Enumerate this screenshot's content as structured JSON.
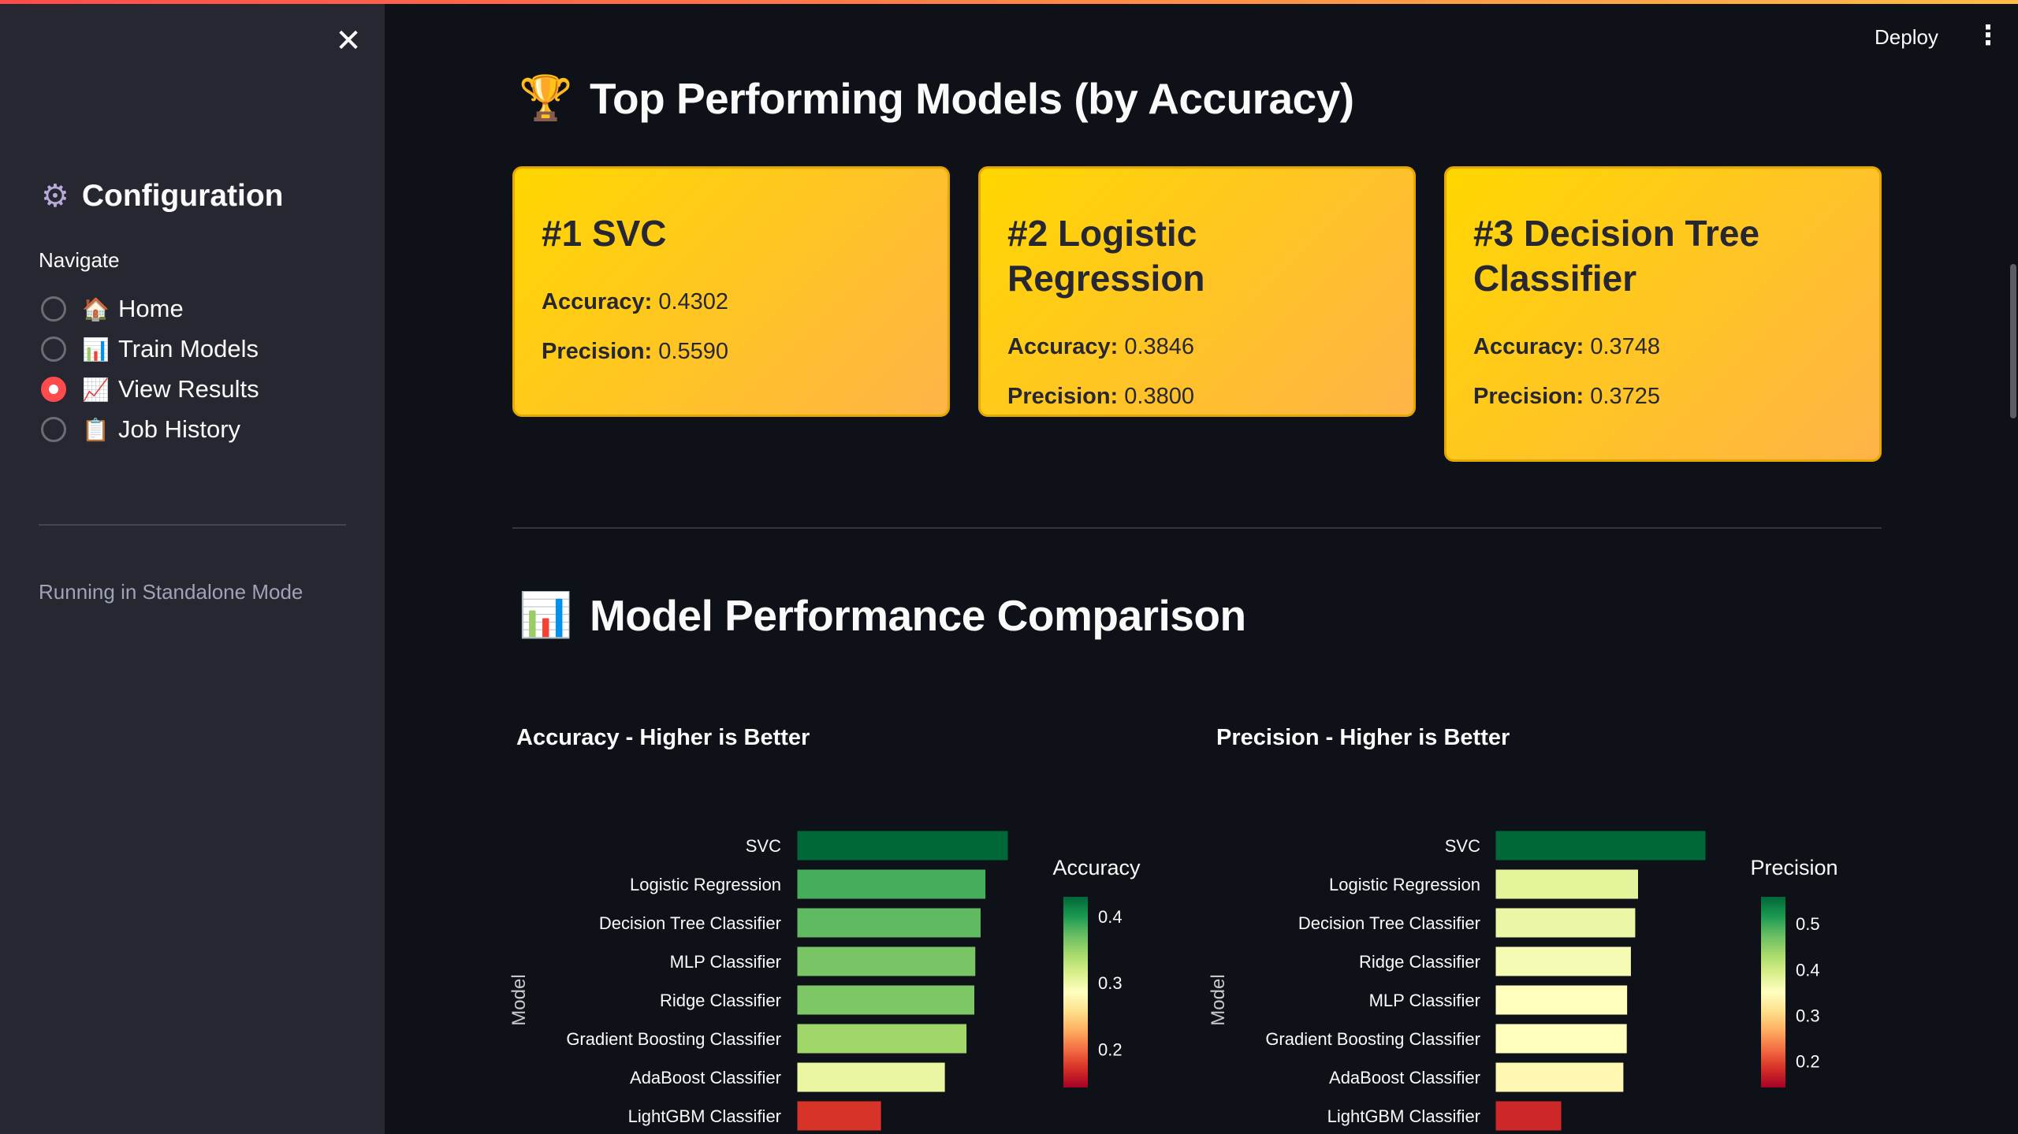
{
  "sidebar": {
    "close_icon": "close-icon",
    "title": "Configuration",
    "title_icon": "gear-icon",
    "nav_label": "Navigate",
    "items": [
      {
        "label": "Home",
        "emoji": "🏠",
        "selected": false
      },
      {
        "label": "Train Models",
        "emoji": "📊",
        "selected": false
      },
      {
        "label": "View Results",
        "emoji": "📈",
        "selected": true
      },
      {
        "label": "Job History",
        "emoji": "📋",
        "selected": false
      }
    ],
    "mode_text": "Running in Standalone Mode"
  },
  "header": {
    "deploy_label": "Deploy",
    "menu_icon": "kebab-menu-icon"
  },
  "top_models": {
    "title": "Top Performing Models (by Accuracy)",
    "emoji": "🏆",
    "cards": [
      {
        "rank_title": "#1 SVC",
        "accuracy_label": "Accuracy:",
        "accuracy": "0.4302",
        "precision_label": "Precision:",
        "precision": "0.5590"
      },
      {
        "rank_title": "#2 Logistic Regression",
        "accuracy_label": "Accuracy:",
        "accuracy": "0.3846",
        "precision_label": "Precision:",
        "precision": "0.3800"
      },
      {
        "rank_title": "#3 Decision Tree Classifier",
        "accuracy_label": "Accuracy:",
        "accuracy": "0.3748",
        "precision_label": "Precision:",
        "precision": "0.3725"
      }
    ]
  },
  "comparison": {
    "title": "Model Performance Comparison",
    "emoji": "📊"
  },
  "colors": {
    "accent": "#ff4b4b",
    "card_gradient_start": "#ffd700",
    "card_gradient_end": "#ffb347",
    "colorscale": "RdYlGn"
  },
  "chart_data": [
    {
      "type": "bar",
      "orientation": "horizontal",
      "title": "Accuracy - Higher is Better",
      "ylabel": "Model",
      "colorbar_title": "Accuracy",
      "colorbar_ticks": [
        "0.4",
        "0.3",
        "0.2"
      ],
      "color_range": [
        0.142,
        0.43
      ],
      "categories": [
        "SVC",
        "Logistic Regression",
        "Decision Tree Classifier",
        "MLP Classifier",
        "Ridge Classifier",
        "Gradient Boosting Classifier",
        "AdaBoost Classifier",
        "LightGBM Classifier"
      ],
      "values": [
        0.4302,
        0.3846,
        0.3748,
        0.364,
        0.362,
        0.346,
        0.302,
        0.172
      ]
    },
    {
      "type": "bar",
      "orientation": "horizontal",
      "title": "Precision - Higher is Better",
      "ylabel": "Model",
      "colorbar_title": "Precision",
      "colorbar_ticks": [
        "0.5",
        "0.4",
        "0.3",
        "0.2"
      ],
      "color_range": [
        0.142,
        0.559
      ],
      "categories": [
        "SVC",
        "Logistic Regression",
        "Decision Tree Classifier",
        "Ridge Classifier",
        "MLP Classifier",
        "Gradient Boosting Classifier",
        "AdaBoost Classifier",
        "LightGBM Classifier"
      ],
      "values": [
        0.559,
        0.38,
        0.3725,
        0.361,
        0.351,
        0.35,
        0.341,
        0.176
      ]
    }
  ]
}
